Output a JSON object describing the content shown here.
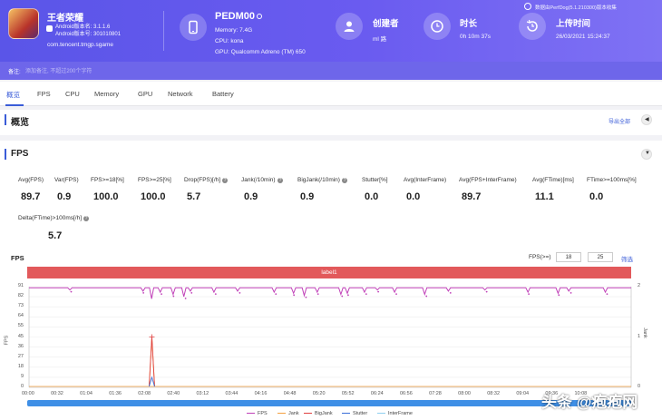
{
  "app": {
    "name": "王者荣耀",
    "version_line": "Android版本名: 3.1.1.6",
    "build_line": "Android版本号: 301010801",
    "package": "com.tencent.tmgp.sgame"
  },
  "device": {
    "name": "PEDM00",
    "memory": "Memory: 7.4G",
    "cpu": "CPU: kona",
    "gpu": "GPU: Qualcomm Adreno (TM) 650"
  },
  "creator": {
    "label": "创建者",
    "value": "ml 路"
  },
  "duration": {
    "label": "时长",
    "value": "0h 10m 37s"
  },
  "upload": {
    "label": "上传时间",
    "value": "26/03/2021 15:24:37"
  },
  "perfdog": "数据由PerfDog(5.1.210300)版本收集",
  "remark": {
    "label": "备注:",
    "placeholder": "添加备注, 不超过200个字符"
  },
  "tabs": [
    "概览",
    "FPS",
    "CPU",
    "Memory",
    "GPU",
    "Network",
    "Battery"
  ],
  "overview": {
    "title": "概览",
    "export": "导出全部"
  },
  "fps_section": {
    "title": "FPS"
  },
  "metrics": [
    {
      "label": "Avg(FPS)",
      "value": "89.7",
      "help": false
    },
    {
      "label": "Var(FPS)",
      "value": "0.9",
      "help": false
    },
    {
      "label": "FPS>=18[%]",
      "value": "100.0",
      "help": false
    },
    {
      "label": "FPS>=25[%]",
      "value": "100.0",
      "help": false
    },
    {
      "label": "Drop(FPS)[/h]",
      "value": "5.7",
      "help": true
    },
    {
      "label": "Jank(/10min)",
      "value": "0.9",
      "help": true
    },
    {
      "label": "BigJank(/10min)",
      "value": "0.9",
      "help": true
    },
    {
      "label": "Stutter[%]",
      "value": "0.0",
      "help": false
    },
    {
      "label": "Avg(InterFrame)",
      "value": "0.0",
      "help": false
    },
    {
      "label": "Avg(FPS+InterFrame)",
      "value": "89.7",
      "help": false
    },
    {
      "label": "Avg(FTime)[ms]",
      "value": "11.1",
      "help": false
    },
    {
      "label": "FTime>=100ms[%]",
      "value": "0.0",
      "help": false
    },
    {
      "label": "Delta(FTime)>100ms[/h]",
      "value": "5.7",
      "help": true
    }
  ],
  "chart_filter": {
    "label": "FPS(>=)",
    "value_a": "18",
    "value_b": "25",
    "button": "筛选"
  },
  "watermark": "头条 @疱疱网",
  "chart_data": {
    "type": "line",
    "title": "FPS",
    "band_label": "label1",
    "ylabel": "FPS",
    "y2label": "Jank",
    "ylim": [
      0,
      91
    ],
    "y2lim": [
      0,
      2
    ],
    "yticks": [
      "91",
      "82",
      "73",
      "64",
      "55",
      "45",
      "36",
      "27",
      "18",
      "9",
      "0"
    ],
    "y2ticks": [
      "2",
      "1",
      "0"
    ],
    "xticks": [
      "00:00",
      "00:32",
      "01:04",
      "01:36",
      "02:08",
      "02:40",
      "03:12",
      "03:44",
      "04:16",
      "04:48",
      "05:20",
      "05:52",
      "06:24",
      "06:56",
      "07:28",
      "08:00",
      "08:32",
      "09:04",
      "09:36",
      "10:08"
    ],
    "series": [
      {
        "name": "FPS",
        "color": "#c040b8",
        "baseline": 90,
        "dips": [
          [
            0.07,
            88
          ],
          [
            0.19,
            87
          ],
          [
            0.22,
            86
          ],
          [
            0.24,
            84
          ],
          [
            0.26,
            82
          ],
          [
            0.27,
            87
          ],
          [
            0.31,
            86
          ],
          [
            0.35,
            87
          ],
          [
            0.41,
            86
          ],
          [
            0.44,
            85
          ],
          [
            0.46,
            83
          ],
          [
            0.48,
            86
          ],
          [
            0.52,
            84
          ],
          [
            0.53,
            85
          ],
          [
            0.56,
            86
          ],
          [
            0.58,
            88
          ],
          [
            0.61,
            86
          ],
          [
            0.66,
            84
          ],
          [
            0.7,
            87
          ],
          [
            0.76,
            88
          ],
          [
            0.83,
            86
          ],
          [
            0.88,
            85
          ],
          [
            0.9,
            87
          ],
          [
            0.96,
            86
          ]
        ]
      },
      {
        "name": "Jank",
        "color": "#f4a040",
        "spike": [
          0.204,
          1
        ]
      },
      {
        "name": "BigJank",
        "color": "#e04040",
        "spike": [
          0.204,
          1
        ]
      },
      {
        "name": "Stutter",
        "color": "#3a6fd8",
        "spike": [
          0.204,
          0.2
        ]
      },
      {
        "name": "InterFrame",
        "color": "#8fd0f0",
        "spike": null
      }
    ],
    "legend": [
      "FPS",
      "Jank",
      "BigJank",
      "Stutter",
      "InterFrame"
    ]
  }
}
